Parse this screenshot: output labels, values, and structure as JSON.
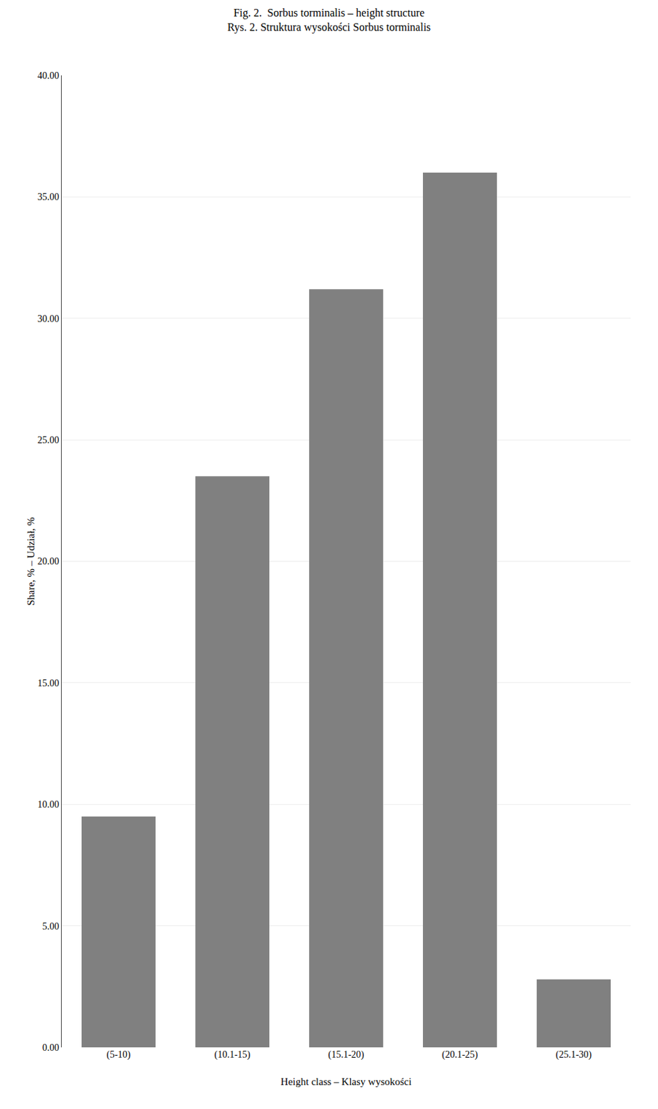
{
  "chart_data": {
    "type": "bar",
    "title": "Fig. 2.  Sorbus torminalis – height structure",
    "subtitle": "Rys. 2. Struktura wysokości Sorbus torminalis",
    "categories": [
      "(5-10)",
      "(10.1-15)",
      "(15.1-20)",
      "(20.1-25)",
      "(25.1-30)"
    ],
    "values": [
      9.5,
      23.5,
      31.2,
      36.0,
      2.8
    ],
    "color": "#808080",
    "x_label": "Height class – Klasy wysokości",
    "y_label": "Share, % – Udział, %",
    "ylim": [
      0,
      40
    ],
    "yticks": [
      {
        "value": 0,
        "label": "0.00"
      },
      {
        "value": 5,
        "label": "5.00"
      },
      {
        "value": 10,
        "label": "10.00"
      },
      {
        "value": 15,
        "label": "15.00"
      },
      {
        "value": 20,
        "label": "20.00"
      },
      {
        "value": 25,
        "label": "25.00"
      },
      {
        "value": 30,
        "label": "30.00"
      },
      {
        "value": 35,
        "label": "35.00"
      },
      {
        "value": 40,
        "label": "40.00"
      }
    ],
    "grid": true
  }
}
